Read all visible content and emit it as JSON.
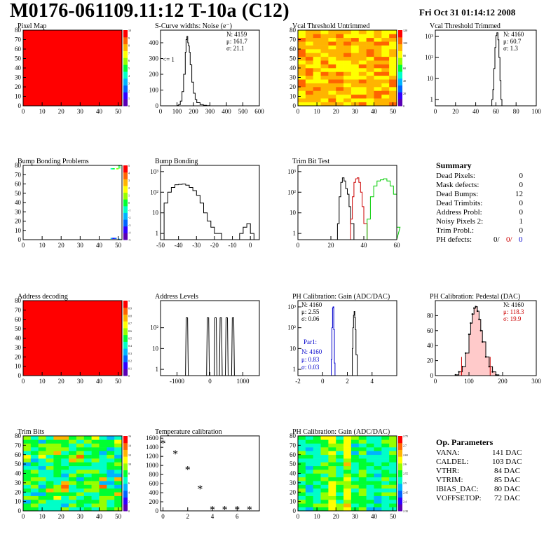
{
  "page": {
    "title": "M0176-061109.11:12 T-10a (C12)",
    "date": "Fri Oct 31 01:14:12 2008"
  },
  "chart_data": [
    {
      "id": "pixel_map",
      "type": "heatmap",
      "title": "Pixel Map",
      "xlim": [
        0,
        52
      ],
      "ylim": [
        0,
        80
      ],
      "xticks": [
        0,
        10,
        20,
        30,
        40,
        50
      ],
      "yticks": [
        0,
        10,
        20,
        30,
        40,
        50,
        60,
        70,
        80
      ],
      "zlim": [
        0,
        10
      ],
      "zticks": [
        "0",
        "1",
        "2",
        "3",
        "4",
        "5",
        "6",
        "7",
        "8",
        "9",
        "10"
      ],
      "fill": "uniform",
      "value": 10
    },
    {
      "id": "scurve",
      "type": "histogram",
      "title": "S-Curve widths: Noise (e⁻)",
      "xlim": [
        0,
        600
      ],
      "ylim": [
        0,
        480
      ],
      "xticks": [
        0,
        100,
        200,
        300,
        400,
        500,
        600
      ],
      "yticks": [
        0,
        100,
        200,
        300,
        400
      ],
      "stats": {
        "N": "N: 4159",
        "mu": "μ: 161.7",
        "sigma": "σ: 21.1"
      },
      "annotation": "<= 1",
      "x": [
        60,
        80,
        100,
        110,
        120,
        130,
        140,
        150,
        155,
        160,
        165,
        170,
        175,
        180,
        190,
        200,
        210,
        220,
        240,
        260,
        280,
        300,
        320
      ],
      "y": [
        0,
        0,
        2,
        8,
        30,
        90,
        200,
        340,
        420,
        440,
        400,
        380,
        340,
        260,
        150,
        80,
        40,
        20,
        8,
        3,
        1,
        0,
        0
      ]
    },
    {
      "id": "vcal_untrimmed",
      "type": "heatmap",
      "title": "Vcal Threshold Untrimmed",
      "xlim": [
        0,
        52
      ],
      "ylim": [
        0,
        80
      ],
      "xticks": [
        0,
        10,
        20,
        30,
        40,
        50
      ],
      "yticks": [
        0,
        10,
        20,
        30,
        40,
        50,
        60,
        70,
        80
      ],
      "zticks": [
        "0",
        "20",
        "40",
        "60",
        "80",
        "100",
        "120"
      ],
      "fill": "noise-warm"
    },
    {
      "id": "vcal_trimmed",
      "type": "histogram",
      "title": "Vcal Threshold Trimmed",
      "log": true,
      "xlim": [
        0,
        100
      ],
      "ylim": [
        0.5,
        2000
      ],
      "xticks": [
        0,
        20,
        40,
        60,
        80,
        100
      ],
      "yticklabels": [
        "1",
        "10",
        "10²",
        "10³"
      ],
      "stats": {
        "N": "N: 4160",
        "mu": "μ: 60.7",
        "sigma": "σ:  1.3"
      },
      "x": [
        55,
        56,
        57,
        58,
        59,
        60,
        61,
        62,
        63,
        64,
        65,
        66
      ],
      "y": [
        0,
        1,
        3,
        30,
        300,
        1100,
        1500,
        700,
        100,
        8,
        1,
        0
      ]
    },
    {
      "id": "bump_problems",
      "type": "heatmap",
      "title": "Bump Bonding Problems",
      "xlim": [
        0,
        52
      ],
      "ylim": [
        0,
        80
      ],
      "xticks": [
        0,
        10,
        20,
        30,
        40,
        50
      ],
      "yticks": [
        0,
        10,
        20,
        30,
        40,
        50,
        60,
        70,
        80
      ],
      "zticks": [
        "-5",
        "-4",
        "-3",
        "-2",
        "-1",
        "0",
        "1",
        "2",
        "3",
        "4",
        "5"
      ],
      "fill": "sparse"
    },
    {
      "id": "bump_bonding",
      "type": "histogram",
      "title": "Bump Bonding",
      "log": true,
      "xlim": [
        -50,
        5
      ],
      "ylim": [
        0.5,
        2000
      ],
      "xticks": [
        -50,
        -40,
        -30,
        -20,
        -10,
        0
      ],
      "yticklabels": [
        "1",
        "10",
        "10²",
        "10³"
      ],
      "x": [
        -50,
        -48,
        -46,
        -44,
        -42,
        -40,
        -38,
        -36,
        -34,
        -32,
        -30,
        -28,
        -26,
        -24,
        -22,
        -20,
        -18,
        -16,
        -14,
        -12,
        -10,
        -8,
        -6,
        -4,
        -2,
        0,
        2
      ],
      "y": [
        0.5,
        30,
        100,
        170,
        230,
        240,
        250,
        220,
        170,
        120,
        70,
        30,
        10,
        4,
        2,
        1,
        1,
        0.5,
        0.5,
        0.5,
        0.5,
        0.5,
        1,
        2,
        3,
        1,
        0.5
      ]
    },
    {
      "id": "trim_bit_test",
      "type": "histogram",
      "title": "Trim Bit Test",
      "log": true,
      "xlim": [
        0,
        60
      ],
      "ylim": [
        0.5,
        2000
      ],
      "xticks": [
        0,
        20,
        40,
        60
      ],
      "yticklabels": [
        "1",
        "10",
        "10²",
        "10³"
      ],
      "series": [
        {
          "color": "#000000",
          "x": [
            22,
            24,
            25,
            26,
            27,
            28,
            29,
            30,
            31,
            32,
            34
          ],
          "y": [
            0.5,
            3,
            60,
            300,
            500,
            350,
            150,
            80,
            20,
            3,
            0.5
          ]
        },
        {
          "color": "#cc0000",
          "x": [
            30,
            32,
            33,
            34,
            35,
            36,
            37,
            38,
            39,
            40,
            42
          ],
          "y": [
            0.5,
            5,
            60,
            300,
            450,
            500,
            300,
            100,
            20,
            3,
            0.5
          ]
        },
        {
          "color": "#00cc00",
          "x": [
            40,
            42,
            44,
            46,
            48,
            50,
            52,
            54,
            56,
            58,
            60
          ],
          "y": [
            0.5,
            5,
            60,
            200,
            350,
            400,
            450,
            350,
            200,
            80,
            2
          ]
        }
      ]
    },
    {
      "id": "summary",
      "type": "table",
      "title": "Summary",
      "rows": [
        {
          "label": "Dead Pixels:",
          "value": "0"
        },
        {
          "label": "Mask defects:",
          "value": "0"
        },
        {
          "label": "Dead Bumps:",
          "value": "12"
        },
        {
          "label": "Dead Trimbits:",
          "value": "0"
        },
        {
          "label": "Address Probl:",
          "value": "0"
        },
        {
          "label": "Noisy Pixels 2:",
          "value": "1"
        },
        {
          "label": "Trim Probl.:",
          "value": "0"
        }
      ],
      "ph_defects": {
        "label": "PH defects:",
        "v1": "0/",
        "v2": "0/",
        "v3": "0",
        "c2": "#cc0000",
        "c3": "#0000cc"
      }
    },
    {
      "id": "address_decoding",
      "type": "heatmap",
      "title": "Address decoding",
      "xlim": [
        0,
        52
      ],
      "ylim": [
        0,
        80
      ],
      "xticks": [
        0,
        10,
        20,
        30,
        40,
        50
      ],
      "yticks": [
        0,
        10,
        20,
        30,
        40,
        50,
        60,
        70,
        80
      ],
      "zticks": [
        "0",
        "0.1",
        "0.2",
        "0.3",
        "0.4",
        "0.5",
        "0.6",
        "0.7",
        "0.8",
        "0.9",
        "1"
      ],
      "fill": "uniform",
      "value": 1
    },
    {
      "id": "address_levels",
      "type": "histogram",
      "title": "Address Levels",
      "log": true,
      "xlim": [
        -1500,
        1500
      ],
      "ylim": [
        0.5,
        2000
      ],
      "xticks": [
        -1000,
        0,
        1000
      ],
      "yticklabels": [
        "1",
        "10",
        "10²"
      ],
      "peaks": [
        -700,
        -60,
        170,
        330,
        510,
        700
      ],
      "peak_height": 300
    },
    {
      "id": "ph_gain",
      "type": "histogram",
      "title": "PH Calibration: Gain (ADC/DAC)",
      "log": true,
      "xlim": [
        -2,
        6
      ],
      "ylim": [
        0.5,
        2000
      ],
      "xticks": [
        -2,
        0,
        2,
        4
      ],
      "yticklabels": [
        "1",
        "10",
        "10²",
        "10³"
      ],
      "stats": {
        "N": "N: 4160",
        "mu": "μ: 2.55",
        "sigma": "σ: 0.06"
      },
      "par": {
        "title": "Par1:",
        "N": "N: 4160",
        "mu": "μ: 0.83",
        "sigma": "σ: 0.03",
        "color": "#0000cc"
      },
      "series": [
        {
          "color": "#0000cc",
          "x": [
            0.65,
            0.7,
            0.75,
            0.8,
            0.85,
            0.9,
            0.95,
            1.0
          ],
          "y": [
            0.5,
            3,
            100,
            900,
            1000,
            80,
            2,
            0.5
          ]
        },
        {
          "color": "#000000",
          "x": [
            2.3,
            2.4,
            2.45,
            2.5,
            2.55,
            2.6,
            2.65,
            2.7,
            2.8
          ],
          "y": [
            0.5,
            10,
            100,
            400,
            600,
            300,
            80,
            5,
            0.5
          ]
        }
      ]
    },
    {
      "id": "ph_pedestal",
      "type": "histogram",
      "title": "PH Calibration: Pedestal (DAC)",
      "xlim": [
        0,
        300
      ],
      "ylim": [
        0,
        100
      ],
      "xticks": [
        0,
        100,
        200,
        300
      ],
      "yticks": [
        0,
        20,
        40,
        60,
        80
      ],
      "stats": {
        "N": "N: 4160",
        "mu": "μ: 118.3",
        "sigma": "σ: 19.9"
      },
      "stats_color": "#cc0000",
      "x": [
        60,
        70,
        80,
        90,
        100,
        105,
        110,
        115,
        120,
        125,
        130,
        135,
        140,
        150,
        160,
        170,
        180
      ],
      "y": [
        1,
        5,
        12,
        30,
        55,
        70,
        82,
        90,
        92,
        86,
        75,
        60,
        45,
        25,
        12,
        5,
        1
      ],
      "cuts": [
        78,
        163
      ],
      "cut_height": 25
    },
    {
      "id": "trim_bits",
      "type": "heatmap",
      "title": "Trim Bits",
      "xlim": [
        0,
        52
      ],
      "ylim": [
        0,
        80
      ],
      "xticks": [
        0,
        10,
        20,
        30,
        40,
        50
      ],
      "yticks": [
        0,
        10,
        20,
        30,
        40,
        50,
        60,
        70,
        80
      ],
      "zticks": [
        "0",
        "2",
        "4",
        "6",
        "8",
        "10",
        "12",
        "14",
        "16"
      ],
      "fill": "noise-green"
    },
    {
      "id": "temperature",
      "type": "scatter",
      "title": "Temperature calibration",
      "xlim": [
        -0.2,
        7.8
      ],
      "ylim": [
        0,
        1650
      ],
      "xticks": [
        0,
        2,
        4,
        6
      ],
      "yticks": [
        0,
        200,
        400,
        600,
        800,
        1000,
        1200,
        1400,
        1600
      ],
      "x": [
        0,
        1,
        2,
        3,
        4,
        5,
        6,
        7
      ],
      "y": [
        1480,
        1250,
        900,
        480,
        20,
        20,
        20,
        20
      ]
    },
    {
      "id": "ph_gain_map",
      "type": "heatmap",
      "title": "PH Calibration: Gain (ADC/DAC)",
      "xlim": [
        0,
        52
      ],
      "ylim": [
        0,
        80
      ],
      "xticks": [
        0,
        10,
        20,
        30,
        40,
        50
      ],
      "yticks": [
        0,
        10,
        20,
        30,
        40,
        50,
        60,
        70,
        80
      ],
      "zticks": [
        "2.35",
        "2.4",
        "2.45",
        "2.5",
        "2.55",
        "2.6",
        "2.65",
        "2.7",
        "2.75"
      ],
      "fill": "stripes"
    },
    {
      "id": "op_parameters",
      "type": "table",
      "title": "Op. Parameters",
      "rows": [
        {
          "label": "VANA:",
          "value": "141 DAC"
        },
        {
          "label": "CALDEL:",
          "value": "103 DAC"
        },
        {
          "label": "VTHR:",
          "value": "84 DAC"
        },
        {
          "label": "VTRIM:",
          "value": "85 DAC"
        },
        {
          "label": "IBIAS_DAC:",
          "value": "80 DAC"
        },
        {
          "label": "VOFFSETOP:",
          "value": "72 DAC"
        }
      ]
    }
  ]
}
